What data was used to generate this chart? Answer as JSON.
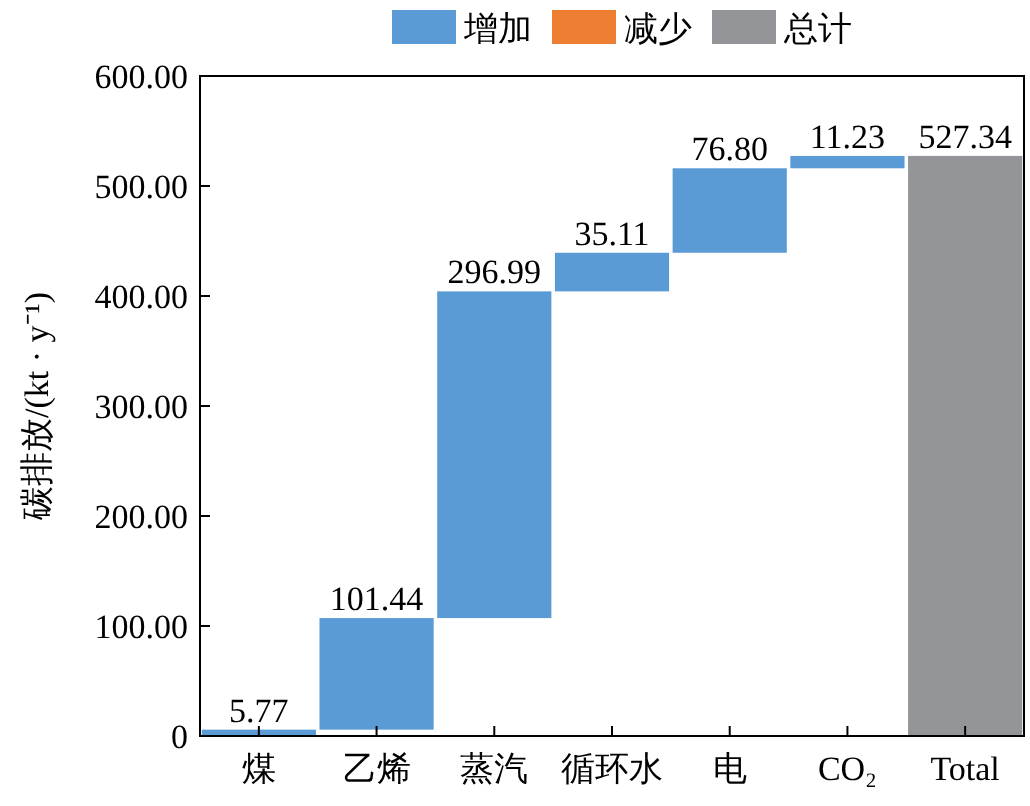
{
  "chart_data": {
    "type": "bar",
    "ylabel": "碳排放/(kt · y⁻¹)",
    "categories": [
      "煤",
      "乙烯",
      "蒸汽",
      "循环水",
      "电",
      "CO₂",
      "Total"
    ],
    "series": [
      {
        "name": "增加",
        "color": "#5b9bd5",
        "values": [
          5.77,
          101.44,
          296.99,
          35.11,
          76.8,
          11.23,
          null
        ],
        "base": [
          0,
          5.77,
          107.21,
          404.2,
          439.31,
          516.11,
          null
        ],
        "value_labels": [
          "5.77",
          "101.44",
          "296.99",
          "35.11",
          "76.80",
          "11.23",
          null
        ]
      },
      {
        "name": "减少",
        "color": "#ed7d31",
        "values": [
          null,
          null,
          null,
          null,
          null,
          null,
          null
        ]
      },
      {
        "name": "总计",
        "color": "#939598",
        "values": [
          null,
          null,
          null,
          null,
          null,
          null,
          527.34
        ],
        "value_labels": [
          null,
          null,
          null,
          null,
          null,
          null,
          "527.34"
        ]
      }
    ],
    "ylim": [
      0,
      600
    ],
    "yticks": [
      {
        "value": 0,
        "label": "0"
      },
      {
        "value": 100,
        "label": "100.00"
      },
      {
        "value": 200,
        "label": "200.00"
      },
      {
        "value": 300,
        "label": "300.00"
      },
      {
        "value": 400,
        "label": "400.00"
      },
      {
        "value": 500,
        "label": "500.00"
      },
      {
        "value": 600,
        "label": "600.00"
      }
    ],
    "legend": "top",
    "grid": false
  }
}
